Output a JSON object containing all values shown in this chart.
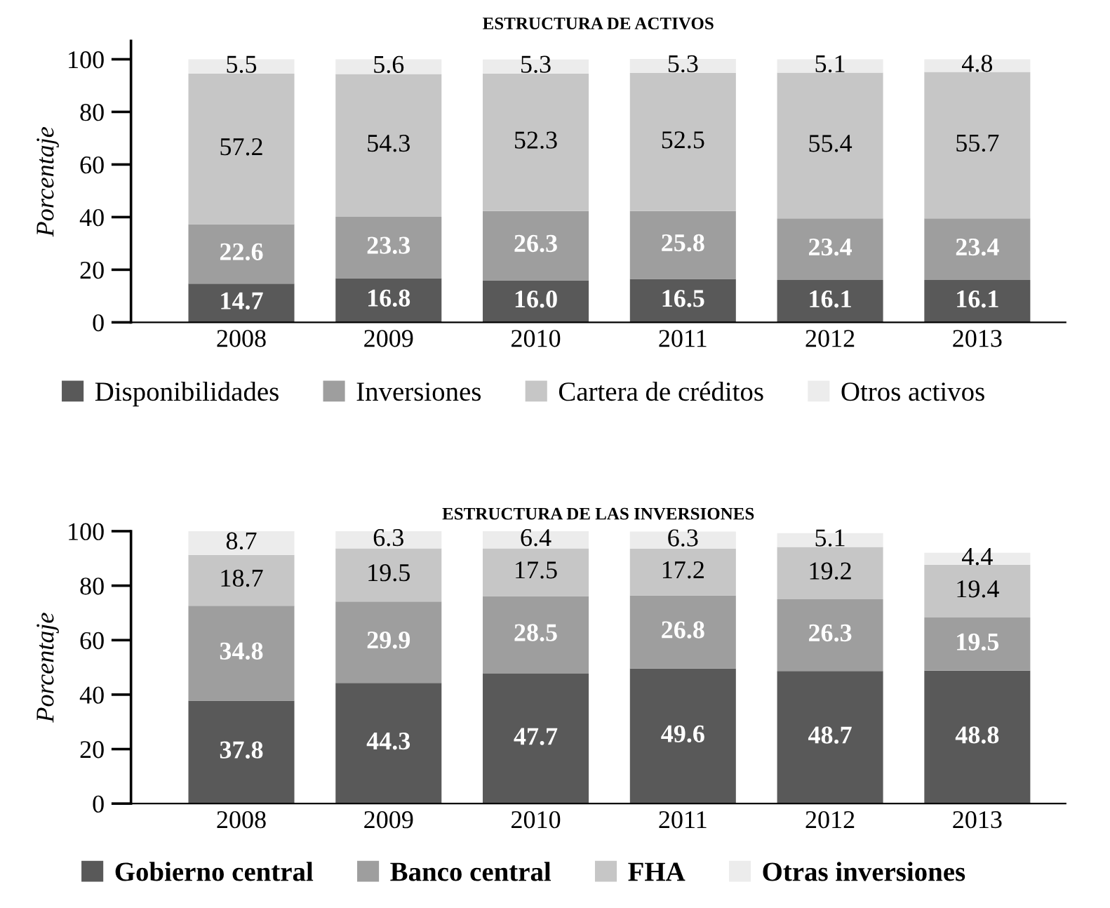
{
  "chart_data": [
    {
      "type": "bar",
      "stacked": true,
      "title": "ESTRUCTURA DE ACTIVOS",
      "ylabel": "Porcentaje",
      "categories": [
        "2008",
        "2009",
        "2010",
        "2011",
        "2012",
        "2013"
      ],
      "ylim": [
        0,
        107
      ],
      "yticks": [
        0,
        20,
        40,
        60,
        80,
        100
      ],
      "grid": false,
      "legend": "bottom",
      "data_labels": true,
      "series": [
        {
          "name": "Disponibilidades",
          "color": "#595959",
          "values": [
            14.7,
            16.8,
            16.0,
            16.5,
            16.1,
            16.1
          ],
          "value_labels": [
            "14.7",
            "16.8",
            "16.0",
            "16.5",
            "16.1",
            "16.1"
          ]
        },
        {
          "name": "Inversiones",
          "color": "#9e9e9e",
          "values": [
            22.6,
            23.3,
            26.3,
            25.8,
            23.4,
            23.4
          ]
        },
        {
          "name": "Cartera de créditos",
          "color": "#c6c6c6",
          "values": [
            57.2,
            54.3,
            52.3,
            52.5,
            55.4,
            55.7
          ]
        },
        {
          "name": "Otros activos",
          "color": "#ececec",
          "values": [
            5.5,
            5.6,
            5.3,
            5.3,
            5.1,
            4.8
          ]
        }
      ]
    },
    {
      "type": "bar",
      "stacked": true,
      "title": "ESTRUCTURA DE LAS INVERSIONES",
      "ylabel": "Porcentaje",
      "categories": [
        "2008",
        "2009",
        "2010",
        "2011",
        "2012",
        "2013"
      ],
      "ylim": [
        0,
        100
      ],
      "yticks": [
        0,
        20,
        40,
        60,
        80,
        100
      ],
      "grid": false,
      "legend": "bottom",
      "data_labels": true,
      "series": [
        {
          "name": "Gobierno central",
          "color": "#595959",
          "values": [
            37.8,
            44.3,
            47.7,
            49.6,
            48.7,
            48.8
          ]
        },
        {
          "name": "Banco central",
          "color": "#9e9e9e",
          "values": [
            34.8,
            29.9,
            28.5,
            26.8,
            26.3,
            19.5
          ]
        },
        {
          "name": "FHA",
          "color": "#c6c6c6",
          "values": [
            18.7,
            19.5,
            17.5,
            17.2,
            19.2,
            19.4
          ]
        },
        {
          "name": "Otras inversiones",
          "color": "#ececec",
          "values": [
            8.7,
            6.3,
            6.4,
            6.3,
            5.1,
            4.4
          ]
        }
      ]
    }
  ]
}
